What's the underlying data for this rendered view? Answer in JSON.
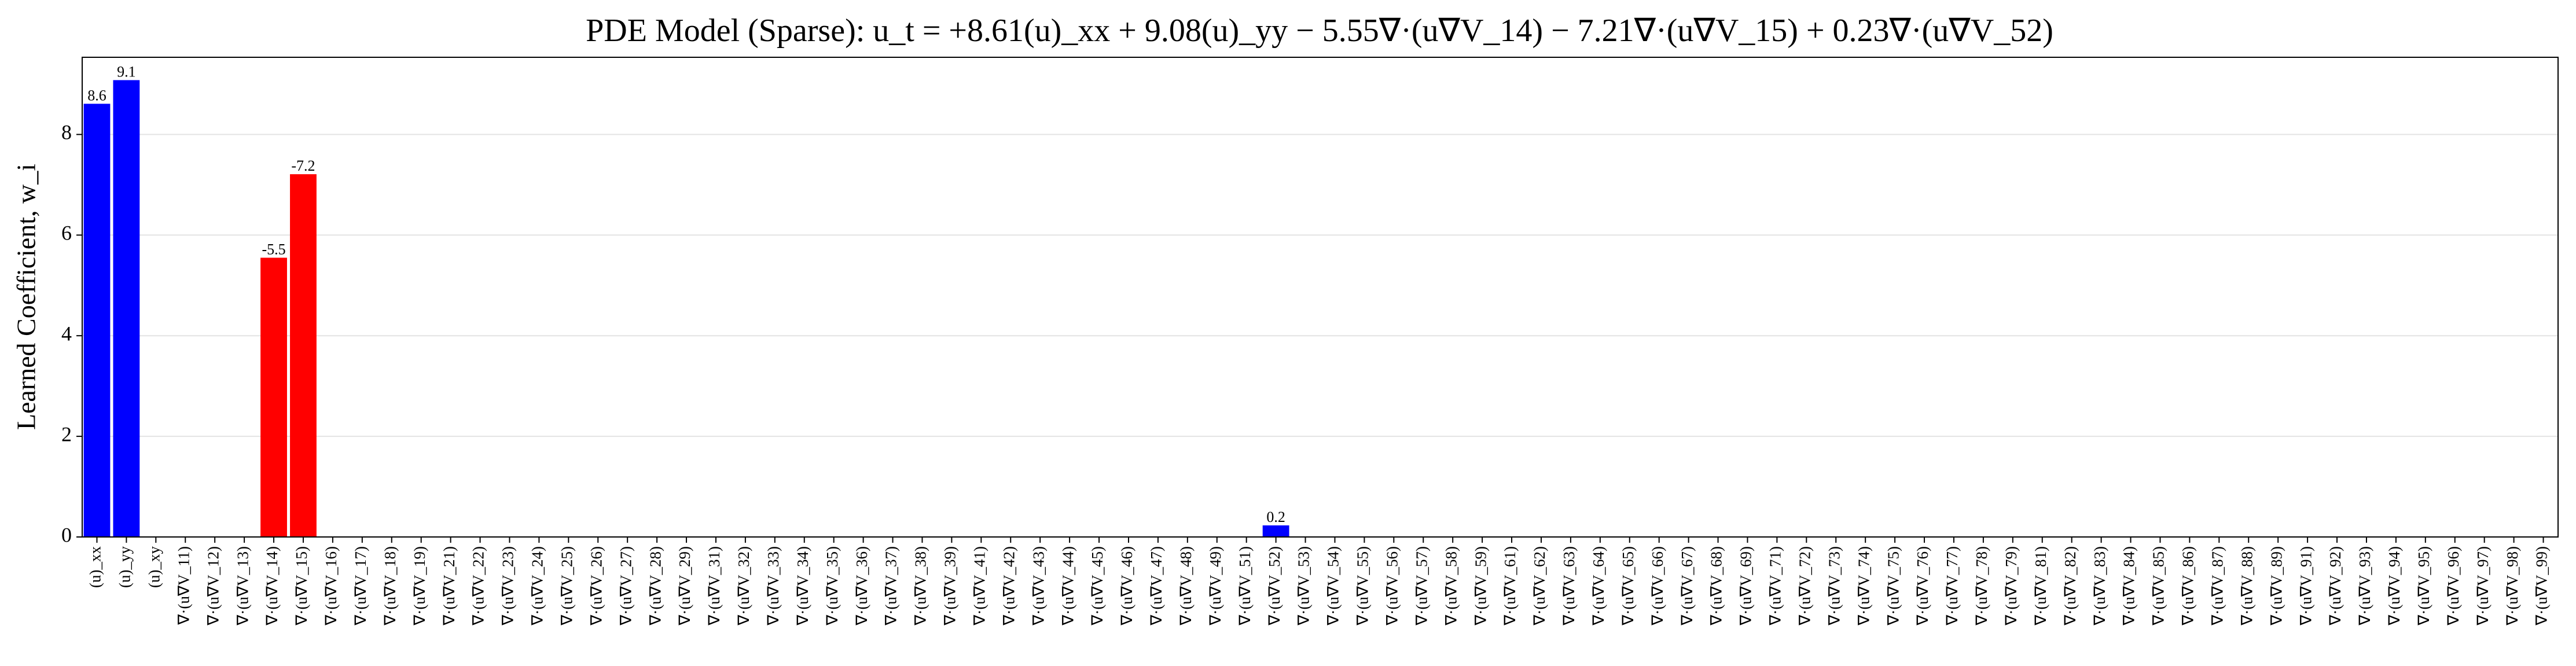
{
  "chart_data": {
    "type": "bar",
    "title": "PDE Model (Sparse): u_t = +8.61(u)_xx + 9.08(u)_yy − 5.55∇·(u∇V_14) − 7.21∇·(u∇V_15) + 0.23∇·(u∇V_52)",
    "y_label": "Learned Coefficient, w_i",
    "categories": [
      "(u)_xx",
      "(u)_yy",
      "(u)_xy",
      "∇·(u∇V_11)",
      "∇·(u∇V_12)",
      "∇·(u∇V_13)",
      "∇·(u∇V_14)",
      "∇·(u∇V_15)",
      "∇·(u∇V_16)",
      "∇·(u∇V_17)",
      "∇·(u∇V_18)",
      "∇·(u∇V_19)",
      "∇·(u∇V_21)",
      "∇·(u∇V_22)",
      "∇·(u∇V_23)",
      "∇·(u∇V_24)",
      "∇·(u∇V_25)",
      "∇·(u∇V_26)",
      "∇·(u∇V_27)",
      "∇·(u∇V_28)",
      "∇·(u∇V_29)",
      "∇·(u∇V_31)",
      "∇·(u∇V_32)",
      "∇·(u∇V_33)",
      "∇·(u∇V_34)",
      "∇·(u∇V_35)",
      "∇·(u∇V_36)",
      "∇·(u∇V_37)",
      "∇·(u∇V_38)",
      "∇·(u∇V_39)",
      "∇·(u∇V_41)",
      "∇·(u∇V_42)",
      "∇·(u∇V_43)",
      "∇·(u∇V_44)",
      "∇·(u∇V_45)",
      "∇·(u∇V_46)",
      "∇·(u∇V_47)",
      "∇·(u∇V_48)",
      "∇·(u∇V_49)",
      "∇·(u∇V_51)",
      "∇·(u∇V_52)",
      "∇·(u∇V_53)",
      "∇·(u∇V_54)",
      "∇·(u∇V_55)",
      "∇·(u∇V_56)",
      "∇·(u∇V_57)",
      "∇·(u∇V_58)",
      "∇·(u∇V_59)",
      "∇·(u∇V_61)",
      "∇·(u∇V_62)",
      "∇·(u∇V_63)",
      "∇·(u∇V_64)",
      "∇·(u∇V_65)",
      "∇·(u∇V_66)",
      "∇·(u∇V_67)",
      "∇·(u∇V_68)",
      "∇·(u∇V_69)",
      "∇·(u∇V_71)",
      "∇·(u∇V_72)",
      "∇·(u∇V_73)",
      "∇·(u∇V_74)",
      "∇·(u∇V_75)",
      "∇·(u∇V_76)",
      "∇·(u∇V_77)",
      "∇·(u∇V_78)",
      "∇·(u∇V_79)",
      "∇·(u∇V_81)",
      "∇·(u∇V_82)",
      "∇·(u∇V_83)",
      "∇·(u∇V_84)",
      "∇·(u∇V_85)",
      "∇·(u∇V_86)",
      "∇·(u∇V_87)",
      "∇·(u∇V_88)",
      "∇·(u∇V_89)",
      "∇·(u∇V_91)",
      "∇·(u∇V_92)",
      "∇·(u∇V_93)",
      "∇·(u∇V_94)",
      "∇·(u∇V_95)",
      "∇·(u∇V_96)",
      "∇·(u∇V_97)",
      "∇·(u∇V_98)",
      "∇·(u∇V_99)"
    ],
    "values": [
      8.61,
      9.08,
      0,
      0,
      0,
      0,
      -5.55,
      -7.21,
      0,
      0,
      0,
      0,
      0,
      0,
      0,
      0,
      0,
      0,
      0,
      0,
      0,
      0,
      0,
      0,
      0,
      0,
      0,
      0,
      0,
      0,
      0,
      0,
      0,
      0,
      0,
      0,
      0,
      0,
      0,
      0,
      0.23,
      0,
      0,
      0,
      0,
      0,
      0,
      0,
      0,
      0,
      0,
      0,
      0,
      0,
      0,
      0,
      0,
      0,
      0,
      0,
      0,
      0,
      0,
      0,
      0,
      0,
      0,
      0,
      0,
      0,
      0,
      0,
      0,
      0,
      0,
      0,
      0,
      0,
      0,
      0,
      0,
      0,
      0,
      0
    ],
    "value_labels": [
      "8.6",
      "9.1",
      null,
      null,
      null,
      null,
      "-5.5",
      "-7.2",
      null,
      null,
      null,
      null,
      null,
      null,
      null,
      null,
      null,
      null,
      null,
      null,
      null,
      null,
      null,
      null,
      null,
      null,
      null,
      null,
      null,
      null,
      null,
      null,
      null,
      null,
      null,
      null,
      null,
      null,
      null,
      null,
      "0.2",
      null,
      null,
      null,
      null,
      null,
      null,
      null,
      null,
      null,
      null,
      null,
      null,
      null,
      null,
      null,
      null,
      null,
      null,
      null,
      null,
      null,
      null,
      null,
      null,
      null,
      null,
      null,
      null,
      null,
      null,
      null,
      null,
      null,
      null,
      null,
      null,
      null,
      null,
      null,
      null,
      null,
      null,
      null
    ],
    "positive_color": "#0000ff",
    "negative_color": "#ff0000",
    "ylim": [
      0,
      9.534
    ],
    "yticks": [
      0,
      2,
      4,
      6,
      8
    ],
    "grid": true
  }
}
